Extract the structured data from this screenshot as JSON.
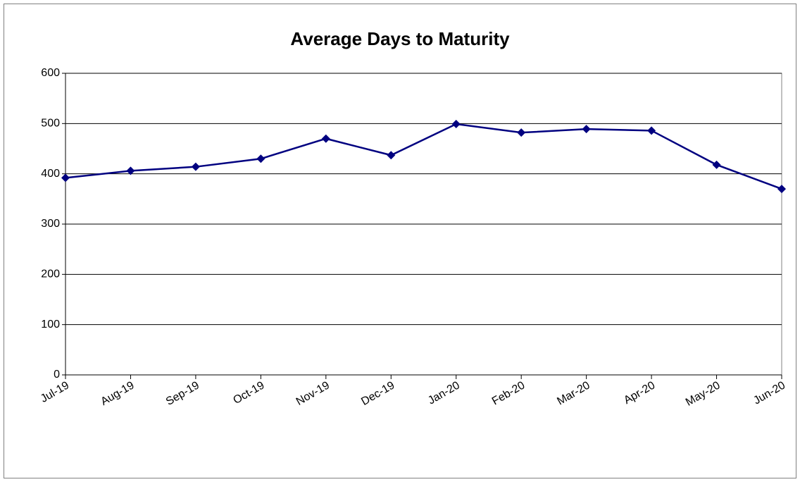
{
  "chart_data": {
    "type": "line",
    "title": "Average Days to Maturity",
    "categories": [
      "Jul-19",
      "Aug-19",
      "Sep-19",
      "Oct-19",
      "Nov-19",
      "Dec-19",
      "Jan-20",
      "Feb-20",
      "Mar-20",
      "Apr-20",
      "May-20",
      "Jun-20"
    ],
    "series": [
      {
        "name": "Average Days to Maturity",
        "color": "#000080",
        "values": [
          392,
          406,
          414,
          430,
          470,
          437,
          499,
          482,
          489,
          486,
          418,
          370
        ]
      }
    ],
    "ylim": [
      0,
      600
    ],
    "yticks": [
      0,
      100,
      200,
      300,
      400,
      500,
      600
    ],
    "grid": true
  }
}
